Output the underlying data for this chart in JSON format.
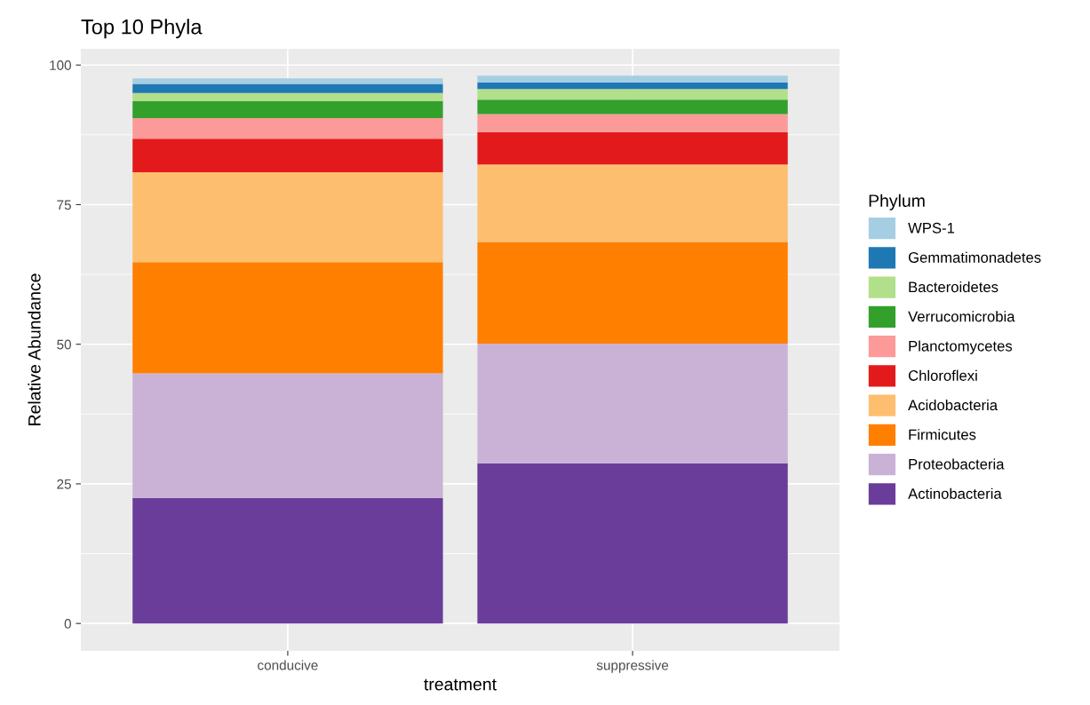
{
  "chart_data": {
    "type": "bar",
    "title": "Top 10 Phyla",
    "xlabel": "treatment",
    "ylabel": "Relative Abundance",
    "legend_title": "Phylum",
    "categories": [
      "conducive",
      "suppressive"
    ],
    "stacked": true,
    "ylim": [
      -4.9,
      102.9
    ],
    "yticks": [
      0,
      25,
      50,
      75,
      100
    ],
    "grid": true,
    "legend": "right",
    "series": [
      {
        "name": "Actinobacteria",
        "color": "#6a3d9a",
        "values": [
          22.5,
          28.7
        ]
      },
      {
        "name": "Proteobacteria",
        "color": "#cab2d6",
        "values": [
          22.3,
          21.4
        ]
      },
      {
        "name": "Firmicutes",
        "color": "#ff7f00",
        "values": [
          19.9,
          18.2
        ]
      },
      {
        "name": "Acidobacteria",
        "color": "#fdbf6f",
        "values": [
          16.1,
          13.9
        ]
      },
      {
        "name": "Chloroflexi",
        "color": "#e31a1c",
        "values": [
          6.0,
          5.8
        ]
      },
      {
        "name": "Planctomycetes",
        "color": "#fb9a99",
        "values": [
          3.7,
          3.2
        ]
      },
      {
        "name": "Verrucomicrobia",
        "color": "#33a02c",
        "values": [
          3.0,
          2.6
        ]
      },
      {
        "name": "Bacteroidetes",
        "color": "#b2df8a",
        "values": [
          1.5,
          1.9
        ]
      },
      {
        "name": "Gemmatimonadetes",
        "color": "#1f78b4",
        "values": [
          1.6,
          1.2
        ]
      },
      {
        "name": "WPS-1",
        "color": "#a6cee3",
        "values": [
          1.0,
          1.2
        ]
      }
    ]
  }
}
